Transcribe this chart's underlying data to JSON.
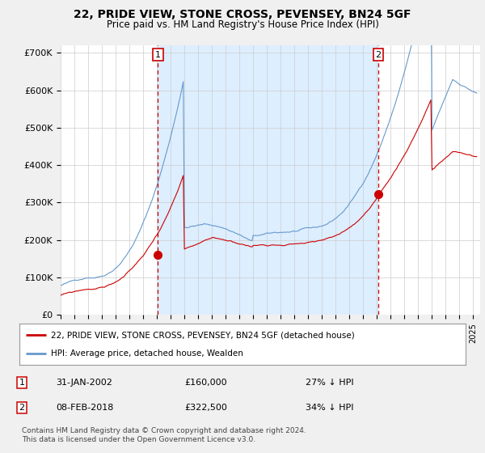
{
  "title": "22, PRIDE VIEW, STONE CROSS, PEVENSEY, BN24 5GF",
  "subtitle": "Price paid vs. HM Land Registry's House Price Index (HPI)",
  "ylabel_ticks": [
    "£0",
    "£100K",
    "£200K",
    "£300K",
    "£400K",
    "£500K",
    "£600K",
    "£700K"
  ],
  "ylim": [
    0,
    720000
  ],
  "xlim_start": 1995.0,
  "xlim_end": 2025.5,
  "property_color": "#cc0000",
  "hpi_color": "#6699cc",
  "hpi_fill_color": "#ddeeff",
  "marker1_date": 2002.08,
  "marker1_price": 160000,
  "marker2_date": 2018.1,
  "marker2_price": 322500,
  "legend_property": "22, PRIDE VIEW, STONE CROSS, PEVENSEY, BN24 5GF (detached house)",
  "legend_hpi": "HPI: Average price, detached house, Wealden",
  "note1_label": "1",
  "note1_date": "31-JAN-2002",
  "note1_price": "£160,000",
  "note1_hpi": "27% ↓ HPI",
  "note2_label": "2",
  "note2_date": "08-FEB-2018",
  "note2_price": "£322,500",
  "note2_hpi": "34% ↓ HPI",
  "footer": "Contains HM Land Registry data © Crown copyright and database right 2024.\nThis data is licensed under the Open Government Licence v3.0.",
  "bg_color": "#f0f0f0",
  "plot_bg_color": "#ffffff"
}
